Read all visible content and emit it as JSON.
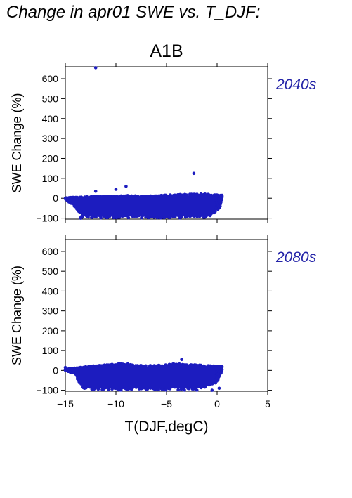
{
  "title": "Change in apr01 SWE vs. T_DJF:",
  "chart_data": [
    {
      "type": "scatter",
      "scenario": "A1B",
      "period_label": "2040s",
      "ylabel": "SWE Change (%)",
      "xlim": [
        -15,
        5
      ],
      "ylim": [
        -105,
        660
      ],
      "yticks": [
        "600",
        "500",
        "400",
        "300",
        "200",
        "100",
        "0",
        "−100"
      ],
      "ytick_values": [
        600,
        500,
        400,
        300,
        200,
        100,
        0,
        -100
      ],
      "point_color": "#1c1cbf",
      "label_color": "#2424a8",
      "cluster": {
        "x_range": [
          -15,
          0.5
        ],
        "upper_edge": [
          [
            -15,
            2
          ],
          [
            -13,
            8
          ],
          [
            -11,
            10
          ],
          [
            -9,
            14
          ],
          [
            -7,
            10
          ],
          [
            -5,
            16
          ],
          [
            -3,
            20
          ],
          [
            -1.5,
            22
          ],
          [
            0.5,
            15
          ]
        ],
        "lower_edge": [
          [
            -15,
            -5
          ],
          [
            -14,
            -45
          ],
          [
            -13.5,
            -95
          ],
          [
            -13,
            -100
          ],
          [
            -1,
            -100
          ],
          [
            -0.5,
            -85
          ],
          [
            0.3,
            -45
          ],
          [
            0.5,
            5
          ]
        ]
      },
      "outliers": [
        {
          "x": -12,
          "y": 655
        },
        {
          "x": -2.3,
          "y": 125
        },
        {
          "x": -9,
          "y": 60
        },
        {
          "x": -10,
          "y": 45
        },
        {
          "x": -12,
          "y": 35
        },
        {
          "x": -14,
          "y": -40
        },
        {
          "x": -13.5,
          "y": -100
        },
        {
          "x": 0.3,
          "y": -40
        },
        {
          "x": -0.2,
          "y": -60
        }
      ]
    },
    {
      "type": "scatter",
      "period_label": "2080s",
      "ylabel": "SWE Change (%)",
      "xlabel": "T(DJF,degC)",
      "xlim": [
        -15,
        5
      ],
      "ylim": [
        -105,
        660
      ],
      "xticks": [
        "−15",
        "−10",
        "−5",
        "0",
        "5"
      ],
      "xtick_values": [
        -15,
        -10,
        -5,
        0,
        5
      ],
      "yticks": [
        "600",
        "500",
        "400",
        "300",
        "200",
        "100",
        "0",
        "−100"
      ],
      "ytick_values": [
        600,
        500,
        400,
        300,
        200,
        100,
        0,
        -100
      ],
      "point_color": "#1c1cbf",
      "label_color": "#2424a8",
      "cluster": {
        "x_range": [
          -15,
          0.5
        ],
        "upper_edge": [
          [
            -15,
            5
          ],
          [
            -13,
            20
          ],
          [
            -11,
            28
          ],
          [
            -9,
            36
          ],
          [
            -8,
            25
          ],
          [
            -6,
            25
          ],
          [
            -4,
            35
          ],
          [
            -3,
            30
          ],
          [
            -1,
            25
          ],
          [
            0.5,
            20
          ]
        ],
        "lower_edge": [
          [
            -15,
            0
          ],
          [
            -14,
            -20
          ],
          [
            -13.5,
            -80
          ],
          [
            -13,
            -100
          ],
          [
            -2,
            -100
          ],
          [
            -1,
            -85
          ],
          [
            0,
            -60
          ],
          [
            0.5,
            0
          ]
        ]
      },
      "outliers": [
        {
          "x": -3.5,
          "y": 55
        },
        {
          "x": -15,
          "y": 15
        },
        {
          "x": 0.3,
          "y": 20
        },
        {
          "x": 0.2,
          "y": -90
        },
        {
          "x": -0.5,
          "y": -100
        }
      ]
    }
  ]
}
